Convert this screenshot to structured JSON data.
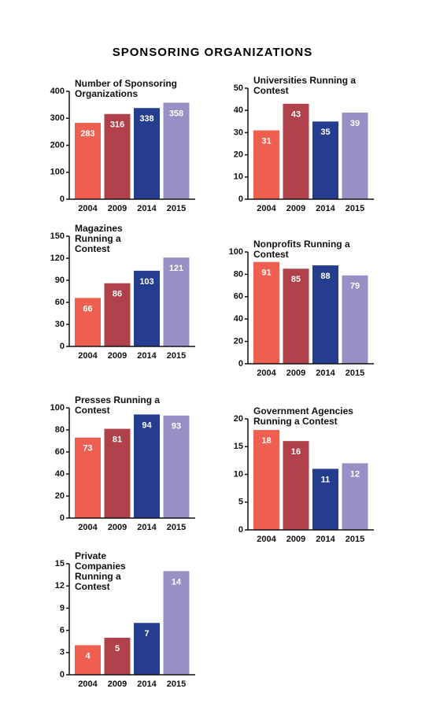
{
  "title": "SPONSORING ORGANIZATIONS",
  "chart_data": [
    {
      "type": "bar",
      "title": "Number of Sponsoring Organizations",
      "categories": [
        "2004",
        "2009",
        "2014",
        "2015"
      ],
      "values": [
        283,
        316,
        338,
        358
      ],
      "colors": [
        "#ef5f4f",
        "#b0404a",
        "#253d8f",
        "#9790c4"
      ],
      "ylim": [
        0,
        400
      ],
      "yticks": [
        0,
        100,
        200,
        300,
        400
      ]
    },
    {
      "type": "bar",
      "title": "Universities Running a Contest",
      "categories": [
        "2004",
        "2009",
        "2014",
        "2015"
      ],
      "values": [
        31,
        43,
        35,
        39
      ],
      "colors": [
        "#ef5f4f",
        "#b0404a",
        "#253d8f",
        "#9790c4"
      ],
      "ylim": [
        0,
        50
      ],
      "yticks": [
        0,
        10,
        20,
        30,
        40,
        50
      ]
    },
    {
      "type": "bar",
      "title": "Magazines Running a Contest",
      "categories": [
        "2004",
        "2009",
        "2014",
        "2015"
      ],
      "values": [
        66,
        86,
        103,
        121
      ],
      "colors": [
        "#ef5f4f",
        "#b0404a",
        "#253d8f",
        "#9790c4"
      ],
      "ylim": [
        0,
        150
      ],
      "yticks": [
        0,
        30,
        60,
        90,
        120,
        150
      ]
    },
    {
      "type": "bar",
      "title": "Nonprofits Running a Contest",
      "categories": [
        "2004",
        "2009",
        "2014",
        "2015"
      ],
      "values": [
        91,
        85,
        88,
        79
      ],
      "colors": [
        "#ef5f4f",
        "#b0404a",
        "#253d8f",
        "#9790c4"
      ],
      "ylim": [
        0,
        100
      ],
      "yticks": [
        0,
        20,
        40,
        60,
        80,
        100
      ]
    },
    {
      "type": "bar",
      "title": "Presses Running a Contest",
      "categories": [
        "2004",
        "2009",
        "2014",
        "2015"
      ],
      "values": [
        73,
        81,
        94,
        93
      ],
      "colors": [
        "#ef5f4f",
        "#b0404a",
        "#253d8f",
        "#9790c4"
      ],
      "ylim": [
        0,
        100
      ],
      "yticks": [
        0,
        20,
        40,
        60,
        80,
        100
      ]
    },
    {
      "type": "bar",
      "title": "Government Agencies Running a Contest",
      "categories": [
        "2004",
        "2009",
        "2014",
        "2015"
      ],
      "values": [
        18,
        16,
        11,
        12
      ],
      "colors": [
        "#ef5f4f",
        "#b0404a",
        "#253d8f",
        "#9790c4"
      ],
      "ylim": [
        0,
        20
      ],
      "yticks": [
        0,
        5,
        10,
        15,
        20
      ]
    },
    {
      "type": "bar",
      "title": "Private Companies Running a Contest",
      "categories": [
        "2004",
        "2009",
        "2014",
        "2015"
      ],
      "values": [
        4,
        5,
        7,
        14
      ],
      "colors": [
        "#ef5f4f",
        "#b0404a",
        "#253d8f",
        "#9790c4"
      ],
      "ylim": [
        0,
        15
      ],
      "yticks": [
        0,
        3,
        6,
        9,
        12,
        15
      ]
    }
  ]
}
